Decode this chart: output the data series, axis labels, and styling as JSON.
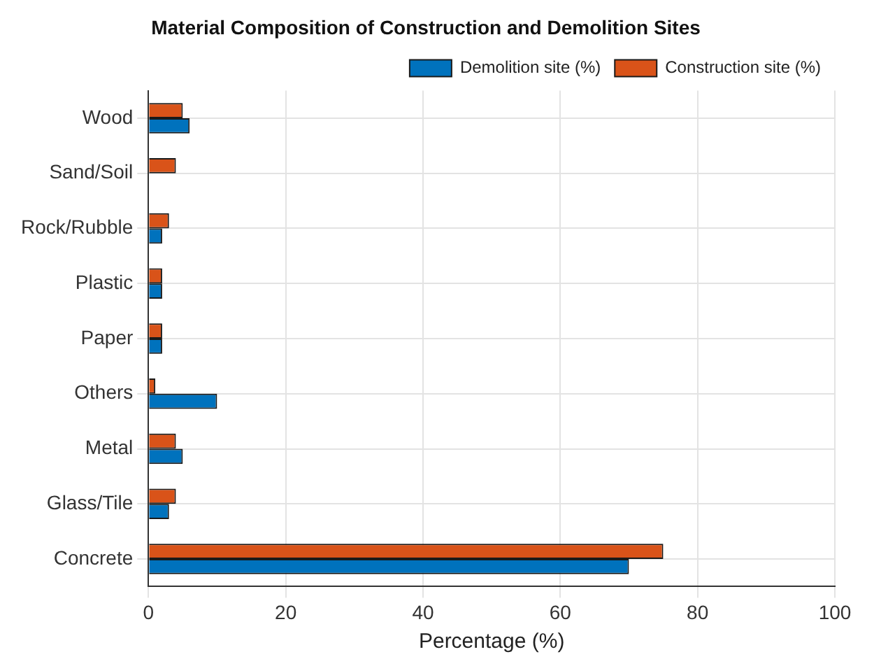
{
  "chart_data": {
    "type": "bar",
    "orientation": "horizontal",
    "title": "Material Composition of Construction and Demolition Sites",
    "xlabel": "Percentage (%)",
    "categories": [
      "Wood",
      "Sand/Soil",
      "Rock/Rubble",
      "Plastic",
      "Paper",
      "Others",
      "Metal",
      "Glass/Tile",
      "Concrete"
    ],
    "series": [
      {
        "name": "Demolition site (%)",
        "color": "#0072bd",
        "values": [
          6,
          0,
          2,
          2,
          2,
          10,
          5,
          3,
          70
        ]
      },
      {
        "name": "Construction site (%)",
        "color": "#d95319",
        "values": [
          5,
          4,
          3,
          2,
          2,
          1,
          4,
          4,
          75
        ]
      }
    ],
    "xlim": [
      0,
      100
    ],
    "xticks": [
      0,
      20,
      40,
      60,
      80,
      100
    ],
    "grid": true,
    "legend": "top right"
  }
}
